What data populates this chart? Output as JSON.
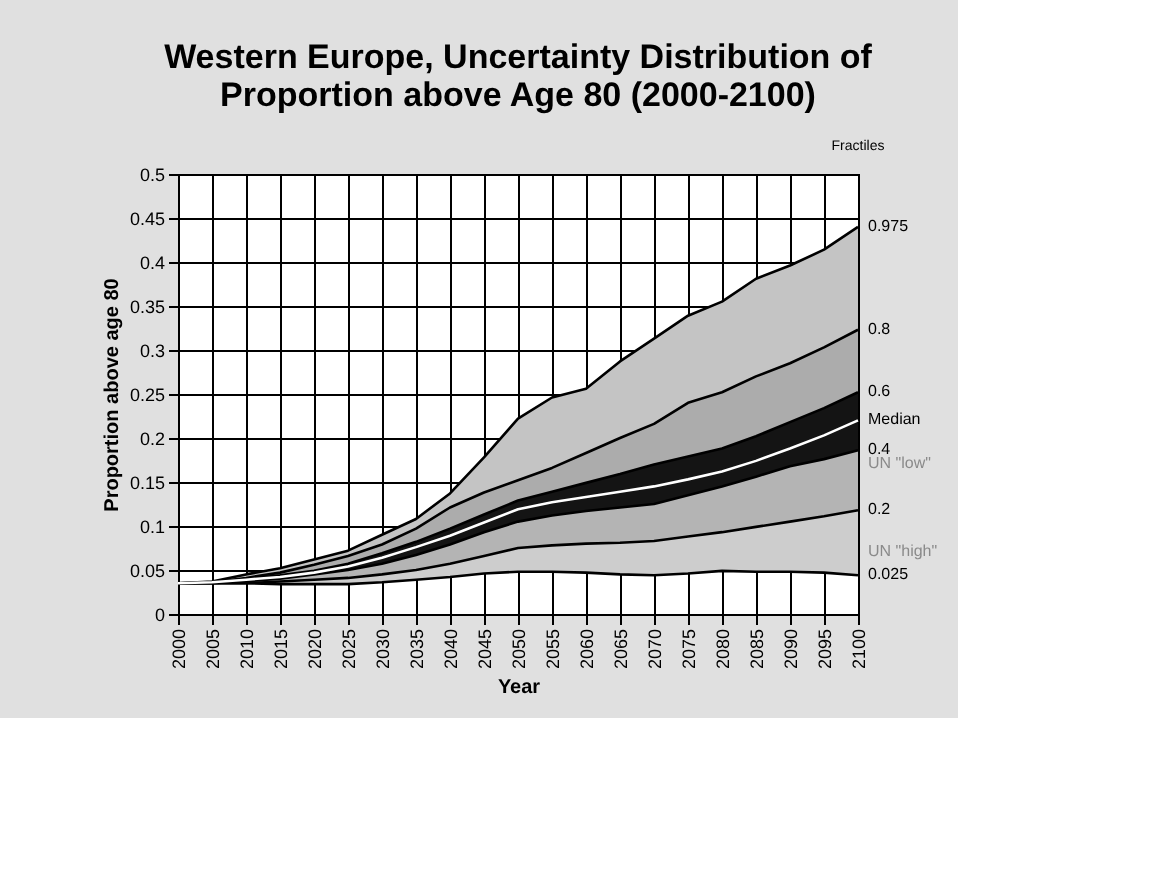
{
  "chart_data": {
    "type": "area",
    "title": "Western Europe, Uncertainty Distribution of Proportion above Age 80 (2000-2100)",
    "xlabel": "Year",
    "ylabel": "Proportion above age 80",
    "legend_title": "Fractiles",
    "x": [
      2000,
      2005,
      2010,
      2015,
      2020,
      2025,
      2030,
      2035,
      2040,
      2045,
      2050,
      2055,
      2060,
      2065,
      2070,
      2075,
      2080,
      2085,
      2090,
      2095,
      2100
    ],
    "series": [
      {
        "name": "0.975",
        "color": "#c4c4c4",
        "values": [
          0.035,
          0.037,
          0.045,
          0.052,
          0.062,
          0.072,
          0.09,
          0.108,
          0.137,
          0.178,
          0.222,
          0.246,
          0.256,
          0.287,
          0.313,
          0.339,
          0.355,
          0.381,
          0.396,
          0.414,
          0.44
        ]
      },
      {
        "name": "0.8",
        "color": "#acacac",
        "values": [
          0.035,
          0.036,
          0.041,
          0.047,
          0.056,
          0.066,
          0.079,
          0.097,
          0.121,
          0.138,
          0.152,
          0.166,
          0.183,
          0.2,
          0.216,
          0.24,
          0.252,
          0.27,
          0.285,
          0.303,
          0.323
        ]
      },
      {
        "name": "0.6",
        "color": "#141414",
        "values": [
          0.035,
          0.036,
          0.04,
          0.044,
          0.049,
          0.057,
          0.069,
          0.082,
          0.097,
          0.113,
          0.129,
          0.139,
          0.149,
          0.159,
          0.17,
          0.179,
          0.188,
          0.202,
          0.218,
          0.234,
          0.252
        ]
      },
      {
        "name": "0.4",
        "color": "#b4b4b4",
        "values": [
          0.035,
          0.035,
          0.037,
          0.04,
          0.045,
          0.05,
          0.057,
          0.067,
          0.079,
          0.093,
          0.105,
          0.112,
          0.117,
          0.121,
          0.125,
          0.135,
          0.145,
          0.156,
          0.168,
          0.176,
          0.186
        ]
      },
      {
        "name": "0.2",
        "color": "#cdcdcd",
        "values": [
          0.035,
          0.035,
          0.035,
          0.037,
          0.039,
          0.041,
          0.045,
          0.05,
          0.057,
          0.066,
          0.075,
          0.078,
          0.08,
          0.081,
          0.083,
          0.088,
          0.093,
          0.099,
          0.105,
          0.111,
          0.118
        ]
      },
      {
        "name": "0.025",
        "type": "line",
        "color": "#000000",
        "values": [
          0.035,
          0.035,
          0.035,
          0.034,
          0.034,
          0.034,
          0.036,
          0.039,
          0.042,
          0.046,
          0.048,
          0.048,
          0.047,
          0.045,
          0.044,
          0.046,
          0.049,
          0.048,
          0.048,
          0.047,
          0.044
        ]
      },
      {
        "name": "Median",
        "type": "line",
        "color": "#ffffff",
        "values": [
          0.035,
          0.036,
          0.039,
          0.042,
          0.047,
          0.054,
          0.064,
          0.076,
          0.089,
          0.104,
          0.119,
          0.127,
          0.133,
          0.139,
          0.145,
          0.153,
          0.162,
          0.174,
          0.188,
          0.203,
          0.22
        ]
      }
    ],
    "annotations": [
      {
        "text": "UN \"low\"",
        "x": 2100,
        "y": 0.17
      },
      {
        "text": "UN \"high\"",
        "x": 2100,
        "y": 0.071
      }
    ],
    "xlim": [
      2000,
      2100
    ],
    "xticks": [
      2000,
      2005,
      2010,
      2015,
      2020,
      2025,
      2030,
      2035,
      2040,
      2045,
      2050,
      2055,
      2060,
      2065,
      2070,
      2075,
      2080,
      2085,
      2090,
      2095,
      2100
    ],
    "ylim": [
      0,
      0.5
    ],
    "yticks": [
      0,
      0.05,
      0.1,
      0.15,
      0.2,
      0.25,
      0.3,
      0.35,
      0.4,
      0.45,
      0.5
    ],
    "grid": true,
    "legend": "right",
    "marker": "none",
    "line_style": "solid"
  }
}
